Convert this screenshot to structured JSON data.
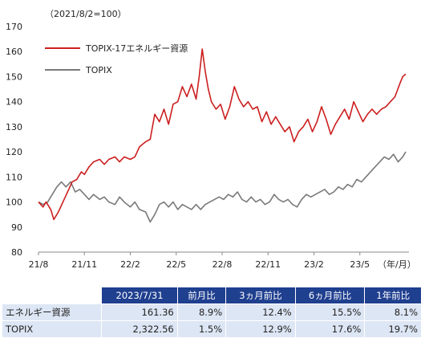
{
  "chart_data": {
    "type": "line",
    "base_note": "（2021/8/2=100）",
    "unit_note": "（年/月）",
    "y_ticks": [
      80,
      90,
      100,
      110,
      120,
      130,
      140,
      150,
      160,
      170
    ],
    "ylim": [
      80,
      170
    ],
    "x_tick_labels": [
      "21/8",
      "21/11",
      "22/2",
      "22/5",
      "22/8",
      "22/11",
      "23/2",
      "23/5"
    ],
    "x_range_months": [
      0,
      24
    ],
    "colors": {
      "energy": "#cc1f1f",
      "topix": "#7a7a7a"
    },
    "series": [
      {
        "name": "TOPIX-17エネルギー資源",
        "points": [
          [
            0.0,
            100
          ],
          [
            0.3,
            98
          ],
          [
            0.5,
            100
          ],
          [
            0.8,
            97
          ],
          [
            1.0,
            93
          ],
          [
            1.3,
            96
          ],
          [
            1.6,
            100
          ],
          [
            1.9,
            104
          ],
          [
            2.2,
            108
          ],
          [
            2.5,
            109
          ],
          [
            2.8,
            112
          ],
          [
            3.0,
            111
          ],
          [
            3.3,
            114
          ],
          [
            3.6,
            116
          ],
          [
            4.0,
            117
          ],
          [
            4.3,
            115
          ],
          [
            4.6,
            117
          ],
          [
            5.0,
            118
          ],
          [
            5.3,
            116
          ],
          [
            5.6,
            118
          ],
          [
            6.0,
            117
          ],
          [
            6.3,
            118
          ],
          [
            6.6,
            122
          ],
          [
            7.0,
            124
          ],
          [
            7.3,
            125
          ],
          [
            7.6,
            135
          ],
          [
            7.9,
            132
          ],
          [
            8.2,
            137
          ],
          [
            8.5,
            131
          ],
          [
            8.8,
            139
          ],
          [
            9.1,
            140
          ],
          [
            9.4,
            146
          ],
          [
            9.7,
            142
          ],
          [
            10.0,
            147
          ],
          [
            10.3,
            141
          ],
          [
            10.5,
            150
          ],
          [
            10.7,
            161
          ],
          [
            10.9,
            152
          ],
          [
            11.1,
            145
          ],
          [
            11.3,
            140
          ],
          [
            11.6,
            137
          ],
          [
            11.9,
            139
          ],
          [
            12.2,
            133
          ],
          [
            12.5,
            138
          ],
          [
            12.8,
            146
          ],
          [
            13.1,
            141
          ],
          [
            13.4,
            138
          ],
          [
            13.7,
            140
          ],
          [
            14.0,
            137
          ],
          [
            14.3,
            138
          ],
          [
            14.6,
            132
          ],
          [
            14.9,
            136
          ],
          [
            15.2,
            131
          ],
          [
            15.5,
            134
          ],
          [
            15.8,
            131
          ],
          [
            16.1,
            128
          ],
          [
            16.4,
            130
          ],
          [
            16.7,
            124
          ],
          [
            17.0,
            128
          ],
          [
            17.3,
            130
          ],
          [
            17.6,
            133
          ],
          [
            17.9,
            128
          ],
          [
            18.2,
            132
          ],
          [
            18.5,
            138
          ],
          [
            18.8,
            133
          ],
          [
            19.1,
            127
          ],
          [
            19.4,
            131
          ],
          [
            19.7,
            134
          ],
          [
            20.0,
            137
          ],
          [
            20.3,
            133
          ],
          [
            20.6,
            140
          ],
          [
            20.9,
            136
          ],
          [
            21.2,
            132
          ],
          [
            21.5,
            135
          ],
          [
            21.8,
            137
          ],
          [
            22.1,
            135
          ],
          [
            22.4,
            137
          ],
          [
            22.7,
            138
          ],
          [
            23.0,
            140
          ],
          [
            23.3,
            142
          ],
          [
            23.6,
            147
          ],
          [
            23.8,
            150
          ],
          [
            24.0,
            151
          ]
        ]
      },
      {
        "name": "TOPIX",
        "points": [
          [
            0.0,
            100
          ],
          [
            0.3,
            99
          ],
          [
            0.6,
            100
          ],
          [
            0.9,
            103
          ],
          [
            1.2,
            106
          ],
          [
            1.5,
            108
          ],
          [
            1.8,
            106
          ],
          [
            2.1,
            108
          ],
          [
            2.4,
            104
          ],
          [
            2.7,
            105
          ],
          [
            3.0,
            103
          ],
          [
            3.3,
            101
          ],
          [
            3.6,
            103
          ],
          [
            4.0,
            101
          ],
          [
            4.3,
            102
          ],
          [
            4.6,
            100
          ],
          [
            5.0,
            99
          ],
          [
            5.3,
            102
          ],
          [
            5.6,
            100
          ],
          [
            6.0,
            98
          ],
          [
            6.3,
            100
          ],
          [
            6.6,
            97
          ],
          [
            7.0,
            96
          ],
          [
            7.3,
            92
          ],
          [
            7.6,
            95
          ],
          [
            7.9,
            99
          ],
          [
            8.2,
            100
          ],
          [
            8.5,
            98
          ],
          [
            8.8,
            100
          ],
          [
            9.1,
            97
          ],
          [
            9.4,
            99
          ],
          [
            9.7,
            98
          ],
          [
            10.0,
            97
          ],
          [
            10.3,
            99
          ],
          [
            10.6,
            97
          ],
          [
            10.9,
            99
          ],
          [
            11.2,
            100
          ],
          [
            11.5,
            101
          ],
          [
            11.8,
            102
          ],
          [
            12.1,
            101
          ],
          [
            12.4,
            103
          ],
          [
            12.7,
            102
          ],
          [
            13.0,
            104
          ],
          [
            13.3,
            101
          ],
          [
            13.6,
            100
          ],
          [
            13.9,
            102
          ],
          [
            14.2,
            100
          ],
          [
            14.5,
            101
          ],
          [
            14.8,
            99
          ],
          [
            15.1,
            100
          ],
          [
            15.4,
            103
          ],
          [
            15.7,
            101
          ],
          [
            16.0,
            100
          ],
          [
            16.3,
            101
          ],
          [
            16.6,
            99
          ],
          [
            16.9,
            98
          ],
          [
            17.2,
            101
          ],
          [
            17.5,
            103
          ],
          [
            17.8,
            102
          ],
          [
            18.1,
            103
          ],
          [
            18.4,
            104
          ],
          [
            18.7,
            105
          ],
          [
            19.0,
            103
          ],
          [
            19.3,
            104
          ],
          [
            19.6,
            106
          ],
          [
            19.9,
            105
          ],
          [
            20.2,
            107
          ],
          [
            20.5,
            106
          ],
          [
            20.8,
            109
          ],
          [
            21.1,
            108
          ],
          [
            21.4,
            110
          ],
          [
            21.7,
            112
          ],
          [
            22.0,
            114
          ],
          [
            22.3,
            116
          ],
          [
            22.6,
            118
          ],
          [
            22.9,
            117
          ],
          [
            23.2,
            119
          ],
          [
            23.5,
            116
          ],
          [
            23.8,
            118
          ],
          [
            24.0,
            120
          ]
        ]
      }
    ],
    "legend_placement": "top-left"
  },
  "table": {
    "headers": [
      "2023/7/31",
      "前月比",
      "3ヵ月前比",
      "6ヵ月前比",
      "1年前比"
    ],
    "rows": [
      {
        "label": "エネルギー資源",
        "cells": [
          "161.36",
          "8.9%",
          "12.4%",
          "15.5%",
          "8.1%"
        ]
      },
      {
        "label": "TOPIX",
        "cells": [
          "2,322.56",
          "1.5%",
          "12.9%",
          "17.6%",
          "19.7%"
        ]
      }
    ]
  }
}
